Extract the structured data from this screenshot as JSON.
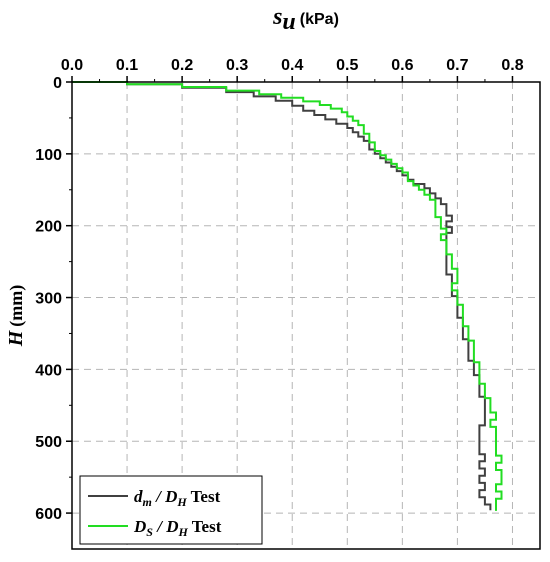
{
  "chart_data": {
    "type": "line",
    "xlabel_symbol": "s",
    "xlabel_sub": "u",
    "xlabel_unit": "(kPa)",
    "ylabel_symbol": "H",
    "ylabel_unit": "(mm)",
    "xlim": [
      0,
      0.85
    ],
    "ylim": [
      0,
      650
    ],
    "y_inverted": true,
    "x_axis_position": "top",
    "xticks": [
      "0.0",
      "0.1",
      "0.2",
      "0.3",
      "0.4",
      "0.5",
      "0.6",
      "0.7",
      "0.8"
    ],
    "yticks": [
      "0",
      "100",
      "200",
      "300",
      "400",
      "500",
      "600"
    ],
    "grid": "dashed",
    "legend_position": "bottom-left",
    "series": [
      {
        "name_parts": [
          "d",
          "m",
          " / ",
          "D",
          "H",
          " Test"
        ],
        "color": "#404040",
        "points": [
          [
            0.0,
            0
          ],
          [
            0.1,
            3
          ],
          [
            0.2,
            8
          ],
          [
            0.28,
            14
          ],
          [
            0.33,
            20
          ],
          [
            0.37,
            26
          ],
          [
            0.4,
            33
          ],
          [
            0.42,
            40
          ],
          [
            0.44,
            46
          ],
          [
            0.46,
            52
          ],
          [
            0.48,
            58
          ],
          [
            0.5,
            64
          ],
          [
            0.51,
            70
          ],
          [
            0.52,
            76
          ],
          [
            0.53,
            82
          ],
          [
            0.54,
            88
          ],
          [
            0.54,
            94
          ],
          [
            0.55,
            100
          ],
          [
            0.56,
            106
          ],
          [
            0.57,
            112
          ],
          [
            0.58,
            118
          ],
          [
            0.59,
            124
          ],
          [
            0.6,
            130
          ],
          [
            0.61,
            136
          ],
          [
            0.62,
            142
          ],
          [
            0.64,
            148
          ],
          [
            0.65,
            155
          ],
          [
            0.66,
            162
          ],
          [
            0.67,
            170
          ],
          [
            0.68,
            178
          ],
          [
            0.68,
            186
          ],
          [
            0.69,
            194
          ],
          [
            0.68,
            202
          ],
          [
            0.69,
            210
          ],
          [
            0.68,
            218
          ],
          [
            0.68,
            228
          ],
          [
            0.68,
            238
          ],
          [
            0.68,
            248
          ],
          [
            0.68,
            258
          ],
          [
            0.68,
            268
          ],
          [
            0.69,
            278
          ],
          [
            0.69,
            288
          ],
          [
            0.69,
            298
          ],
          [
            0.7,
            308
          ],
          [
            0.7,
            318
          ],
          [
            0.7,
            328
          ],
          [
            0.71,
            338
          ],
          [
            0.71,
            348
          ],
          [
            0.71,
            358
          ],
          [
            0.72,
            368
          ],
          [
            0.72,
            378
          ],
          [
            0.72,
            388
          ],
          [
            0.73,
            398
          ],
          [
            0.73,
            408
          ],
          [
            0.74,
            418
          ],
          [
            0.74,
            428
          ],
          [
            0.74,
            438
          ],
          [
            0.75,
            448
          ],
          [
            0.75,
            458
          ],
          [
            0.75,
            468
          ],
          [
            0.75,
            478
          ],
          [
            0.74,
            488
          ],
          [
            0.74,
            498
          ],
          [
            0.74,
            508
          ],
          [
            0.74,
            518
          ],
          [
            0.75,
            528
          ],
          [
            0.74,
            538
          ],
          [
            0.75,
            548
          ],
          [
            0.74,
            558
          ],
          [
            0.75,
            568
          ],
          [
            0.74,
            578
          ],
          [
            0.75,
            588
          ],
          [
            0.76,
            596
          ]
        ]
      },
      {
        "name_parts": [
          "D",
          "S",
          " / ",
          "D",
          "H",
          " Test"
        ],
        "color": "#22dd22",
        "points": [
          [
            0.0,
            0
          ],
          [
            0.1,
            3
          ],
          [
            0.2,
            7
          ],
          [
            0.28,
            12
          ],
          [
            0.34,
            17
          ],
          [
            0.38,
            22
          ],
          [
            0.42,
            27
          ],
          [
            0.45,
            32
          ],
          [
            0.47,
            37
          ],
          [
            0.49,
            42
          ],
          [
            0.5,
            48
          ],
          [
            0.51,
            54
          ],
          [
            0.52,
            60
          ],
          [
            0.53,
            66
          ],
          [
            0.53,
            72
          ],
          [
            0.54,
            78
          ],
          [
            0.54,
            84
          ],
          [
            0.55,
            90
          ],
          [
            0.55,
            96
          ],
          [
            0.56,
            102
          ],
          [
            0.57,
            108
          ],
          [
            0.58,
            114
          ],
          [
            0.59,
            120
          ],
          [
            0.6,
            126
          ],
          [
            0.61,
            132
          ],
          [
            0.61,
            138
          ],
          [
            0.62,
            144
          ],
          [
            0.63,
            150
          ],
          [
            0.64,
            157
          ],
          [
            0.65,
            164
          ],
          [
            0.66,
            172
          ],
          [
            0.66,
            180
          ],
          [
            0.66,
            188
          ],
          [
            0.67,
            196
          ],
          [
            0.67,
            204
          ],
          [
            0.68,
            212
          ],
          [
            0.67,
            220
          ],
          [
            0.68,
            230
          ],
          [
            0.68,
            240
          ],
          [
            0.69,
            250
          ],
          [
            0.69,
            260
          ],
          [
            0.7,
            270
          ],
          [
            0.7,
            280
          ],
          [
            0.69,
            290
          ],
          [
            0.7,
            300
          ],
          [
            0.7,
            310
          ],
          [
            0.71,
            320
          ],
          [
            0.71,
            330
          ],
          [
            0.71,
            340
          ],
          [
            0.72,
            350
          ],
          [
            0.72,
            360
          ],
          [
            0.73,
            370
          ],
          [
            0.73,
            380
          ],
          [
            0.73,
            390
          ],
          [
            0.74,
            400
          ],
          [
            0.74,
            410
          ],
          [
            0.74,
            420
          ],
          [
            0.75,
            430
          ],
          [
            0.75,
            440
          ],
          [
            0.76,
            450
          ],
          [
            0.76,
            460
          ],
          [
            0.77,
            470
          ],
          [
            0.76,
            480
          ],
          [
            0.77,
            490
          ],
          [
            0.77,
            500
          ],
          [
            0.77,
            510
          ],
          [
            0.77,
            520
          ],
          [
            0.78,
            530
          ],
          [
            0.77,
            540
          ],
          [
            0.78,
            550
          ],
          [
            0.78,
            560
          ],
          [
            0.77,
            570
          ],
          [
            0.78,
            580
          ],
          [
            0.77,
            590
          ],
          [
            0.77,
            597
          ]
        ]
      }
    ]
  }
}
